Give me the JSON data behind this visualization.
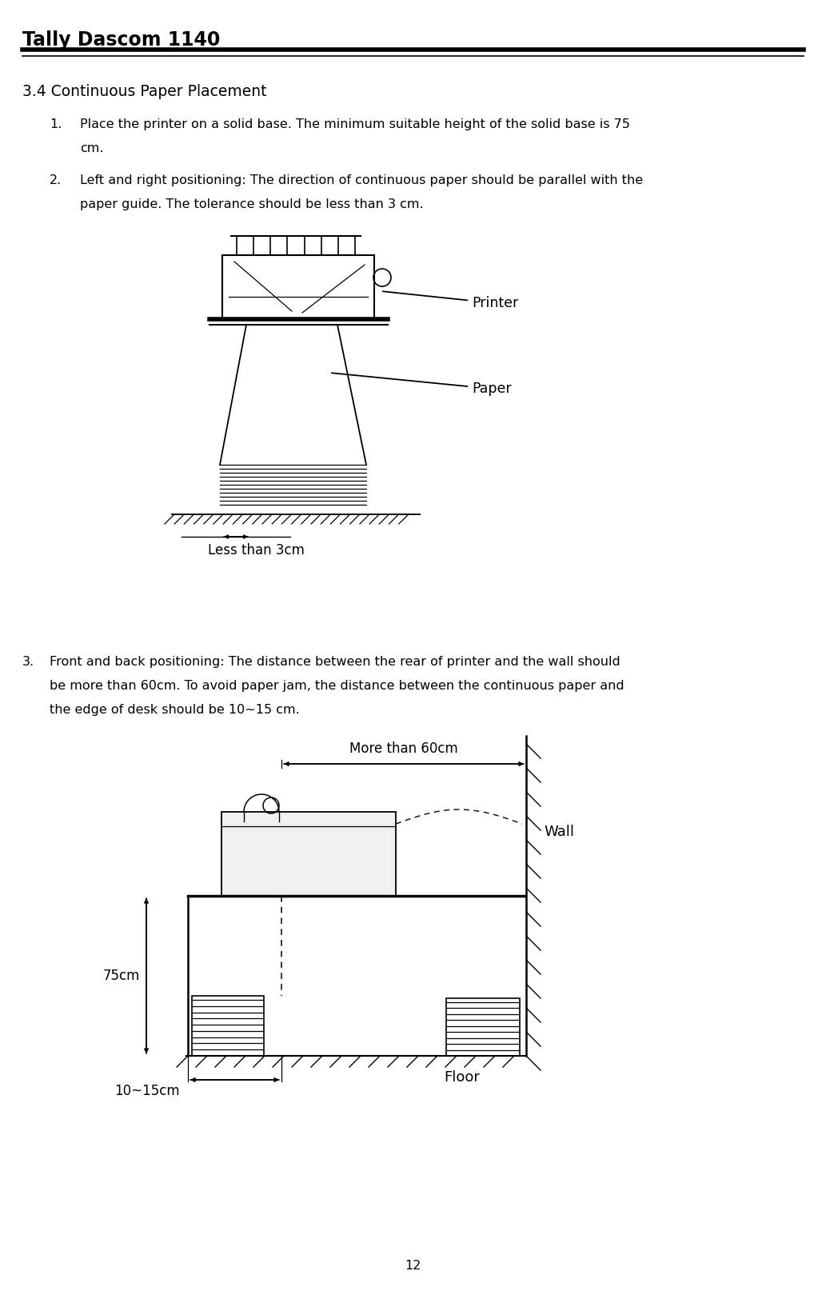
{
  "title": "Tally Dascom 1140",
  "section_title": "3.4 Continuous Paper Placement",
  "item1_num": "1.",
  "item1_l1": "Place the printer on a solid base. The minimum suitable height of the solid base is 75",
  "item1_l2": "cm.",
  "item2_num": "2.",
  "item2_l1": "Left and right positioning: The direction of continuous paper should be parallel with the",
  "item2_l2": "paper guide. The tolerance should be less than 3 cm.",
  "item3_num": "3.",
  "item3_l1": "Front and back positioning: The distance between the rear of printer and the wall should",
  "item3_l2": "be more than 60cm. To avoid paper jam, the distance between the continuous paper and",
  "item3_l3": "the edge of desk should be 10~15 cm.",
  "lbl_printer": "Printer",
  "lbl_paper": "Paper",
  "lbl_less3": "Less than 3cm",
  "lbl_more60": "More than 60cm",
  "lbl_75cm": "75cm",
  "lbl_wall": "Wall",
  "lbl_floor": "Floor",
  "lbl_1015": "10~15cm",
  "page_num": "12",
  "bg": "#ffffff",
  "fg": "#000000"
}
